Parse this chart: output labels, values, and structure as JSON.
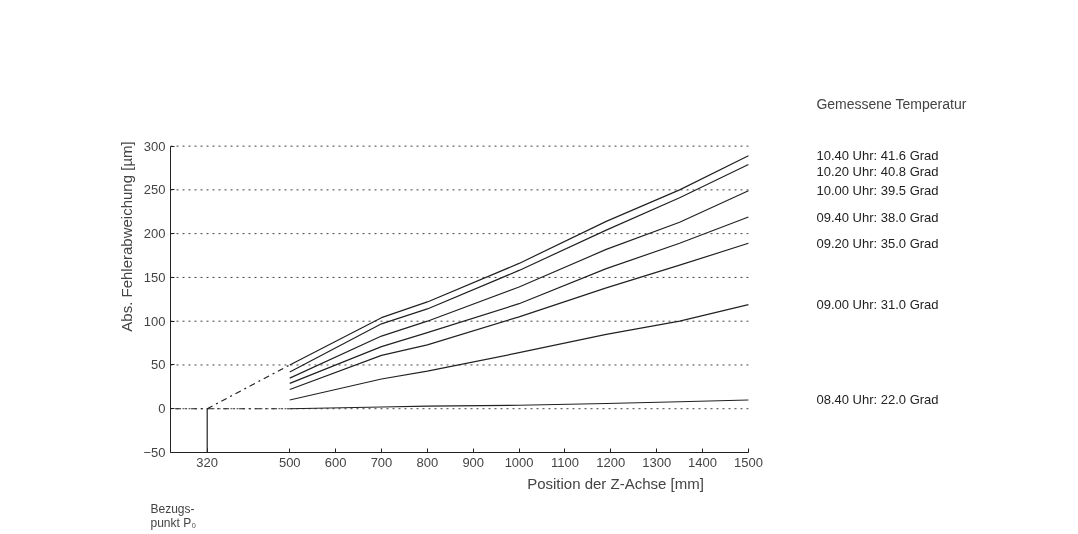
{
  "chart_data": {
    "type": "line",
    "xlabel": "Position der Z-Achse [mm]",
    "ylabel": "Abs. Fehlerabweichung [µm]",
    "legend_title": "Gemessene Temperatur",
    "x": [
      500,
      700,
      800,
      1000,
      1190,
      1350,
      1500
    ],
    "series": [
      {
        "name": "10.40 Uhr:  41.6 Grad",
        "color": "#222222",
        "values": [
          50,
          104,
          122,
          166,
          214,
          250,
          289
        ]
      },
      {
        "name": "10.20 Uhr:  40.8 Grad",
        "color": "#222222",
        "values": [
          42,
          97,
          114,
          158,
          204,
          241,
          279
        ]
      },
      {
        "name": "10.00 Uhr:  39.5 Grad",
        "color": "#222222",
        "values": [
          35,
          83,
          100,
          139,
          182,
          213,
          249
        ]
      },
      {
        "name": "09.40 Uhr:  38.0 Grad",
        "color": "#222222",
        "values": [
          29,
          71,
          87,
          120,
          160,
          189,
          219
        ]
      },
      {
        "name": "09.20 Uhr:  35.0 Grad",
        "color": "#222222",
        "values": [
          22,
          61,
          73,
          105,
          138,
          164,
          189
        ]
      },
      {
        "name": "09.00 Uhr:  31.0 Grad",
        "color": "#222222",
        "values": [
          10,
          34,
          43,
          64,
          85,
          100,
          119
        ]
      },
      {
        "name": "08.40 Uhr:  22.0 Grad",
        "color": "#222222",
        "values": [
          0,
          2,
          3,
          4,
          6,
          8,
          10
        ]
      },
      {
        "color": "#222222",
        "x": [
          320,
          500
        ],
        "values": [
          0,
          50
        ],
        "line_style": "dashed"
      },
      {
        "color": "#222222",
        "x": [
          250,
          500
        ],
        "values": [
          0,
          0
        ],
        "line_style": "dashed"
      },
      {
        "color": "#222222",
        "x": [
          320,
          320
        ],
        "values": [
          -50,
          0
        ]
      }
    ],
    "annotations": [
      "Bezugs-\npunkt P₀"
    ],
    "xlim": [
      240,
      1500
    ],
    "xticks": [
      320,
      500,
      600,
      700,
      800,
      900,
      1000,
      1100,
      1200,
      1300,
      1400,
      1500
    ],
    "ylim": [
      -50,
      300
    ],
    "yticks": [
      -50,
      0,
      50,
      100,
      150,
      200,
      250,
      300
    ],
    "grid": "y",
    "marker": "none",
    "line_style": "solid"
  }
}
